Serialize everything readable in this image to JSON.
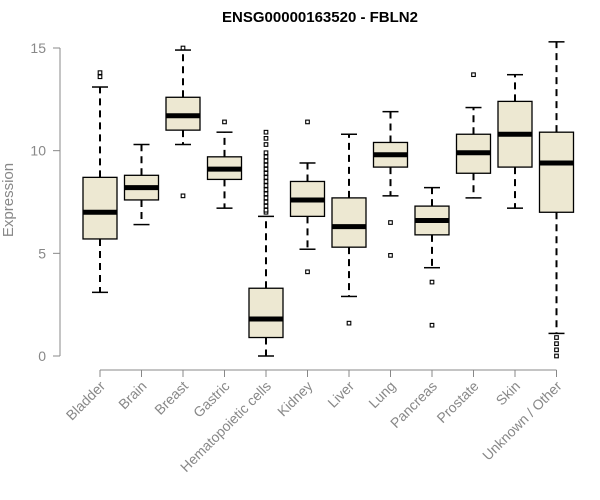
{
  "chart_data": {
    "type": "box",
    "title": "ENSG00000163520 - FBLN2",
    "xlabel": "",
    "ylabel": "Expression",
    "ylim": [
      0,
      15.5
    ],
    "yticks": [
      0,
      5,
      10,
      15
    ],
    "grid": false,
    "colors": {
      "box_fill": "#EDE8D2",
      "box_stroke": "#000000",
      "median": "#000000",
      "axis": "#888888"
    },
    "categories": [
      "Bladder",
      "Brain",
      "Breast",
      "Gastric",
      "Hematopoietic cells",
      "Kidney",
      "Liver",
      "Lung",
      "Pancreas",
      "Prostate",
      "Skin",
      "Unknown / Other"
    ],
    "boxes": [
      {
        "whisker_low": 3.1,
        "q1": 5.7,
        "median": 7.0,
        "q3": 8.7,
        "whisker_high": 13.1,
        "outliers": [
          13.6,
          13.8
        ]
      },
      {
        "whisker_low": 6.4,
        "q1": 7.6,
        "median": 8.2,
        "q3": 8.8,
        "whisker_high": 10.3,
        "outliers": []
      },
      {
        "whisker_low": 10.3,
        "q1": 11.0,
        "median": 11.7,
        "q3": 12.6,
        "whisker_high": 14.9,
        "outliers": [
          7.8,
          15.0
        ]
      },
      {
        "whisker_low": 7.2,
        "q1": 8.6,
        "median": 9.1,
        "q3": 9.7,
        "whisker_high": 10.9,
        "outliers": [
          11.4
        ]
      },
      {
        "whisker_low": 0.0,
        "q1": 0.9,
        "median": 1.8,
        "q3": 3.3,
        "whisker_high": 6.8,
        "outliers": [
          7.0,
          7.1,
          7.3,
          7.5,
          7.7,
          7.9,
          8.1,
          8.3,
          8.5,
          8.7,
          8.9,
          9.1,
          9.3,
          9.5,
          9.7,
          9.9,
          10.3,
          10.6,
          10.9
        ]
      },
      {
        "whisker_low": 5.2,
        "q1": 6.8,
        "median": 7.6,
        "q3": 8.5,
        "whisker_high": 9.4,
        "outliers": [
          4.1,
          11.4
        ]
      },
      {
        "whisker_low": 2.9,
        "q1": 5.3,
        "median": 6.3,
        "q3": 7.7,
        "whisker_high": 10.8,
        "outliers": [
          1.6
        ]
      },
      {
        "whisker_low": 7.8,
        "q1": 9.2,
        "median": 9.8,
        "q3": 10.4,
        "whisker_high": 11.9,
        "outliers": [
          4.9,
          6.5
        ]
      },
      {
        "whisker_low": 4.3,
        "q1": 5.9,
        "median": 6.6,
        "q3": 7.3,
        "whisker_high": 8.2,
        "outliers": [
          1.5,
          3.6
        ]
      },
      {
        "whisker_low": 7.7,
        "q1": 8.9,
        "median": 9.9,
        "q3": 10.8,
        "whisker_high": 12.1,
        "outliers": [
          13.7
        ]
      },
      {
        "whisker_low": 7.2,
        "q1": 9.2,
        "median": 10.8,
        "q3": 12.4,
        "whisker_high": 13.7,
        "outliers": []
      },
      {
        "whisker_low": 1.1,
        "q1": 7.0,
        "median": 9.4,
        "q3": 10.9,
        "whisker_high": 15.3,
        "outliers": [
          0.0,
          0.3,
          0.6,
          0.9
        ]
      }
    ]
  }
}
